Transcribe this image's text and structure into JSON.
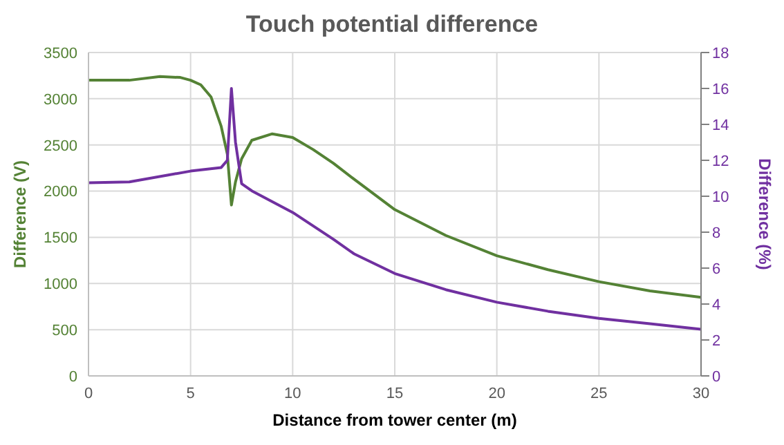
{
  "chart_data": {
    "type": "line",
    "title": "Touch potential difference",
    "xlabel": "Distance  from tower center (m)",
    "ylabel": "Difference (V)",
    "y2label": "Difference (%)",
    "xlim": [
      0,
      30
    ],
    "xticks": [
      0,
      5,
      10,
      15,
      20,
      25,
      30
    ],
    "ylim": [
      0,
      3500
    ],
    "yticks": [
      0,
      500,
      1000,
      1500,
      2000,
      2500,
      3000,
      3500
    ],
    "y2lim": [
      0,
      18
    ],
    "y2ticks": [
      0,
      2,
      4,
      6,
      8,
      10,
      12,
      14,
      16,
      18
    ],
    "grid": true,
    "marker": "none",
    "line_style": "solid",
    "series": [
      {
        "color": "#548235",
        "x": [
          0,
          2,
          3.5,
          4.5,
          5,
          5.5,
          6,
          6.5,
          6.8,
          7.0,
          7.2,
          7.5,
          8,
          9,
          10,
          11,
          12,
          13,
          15,
          17.5,
          20,
          22.5,
          25,
          27.5,
          30
        ],
        "values": [
          3200,
          3200,
          3240,
          3230,
          3200,
          3150,
          3020,
          2700,
          2400,
          1850,
          2100,
          2350,
          2550,
          2620,
          2580,
          2450,
          2300,
          2130,
          1800,
          1520,
          1300,
          1150,
          1020,
          920,
          850
        ]
      },
      {
        "color": "#7030a0",
        "axis": "y2",
        "x": [
          0,
          2,
          5,
          6.5,
          6.8,
          7.0,
          7.2,
          7.5,
          8,
          10,
          12,
          13,
          15,
          17.5,
          20,
          22.5,
          25,
          27.5,
          30
        ],
        "values": [
          10.75,
          10.8,
          11.4,
          11.6,
          12,
          16,
          13,
          10.7,
          10.3,
          9.1,
          7.6,
          6.8,
          5.7,
          4.8,
          4.1,
          3.6,
          3.2,
          2.9,
          2.6
        ]
      }
    ]
  }
}
